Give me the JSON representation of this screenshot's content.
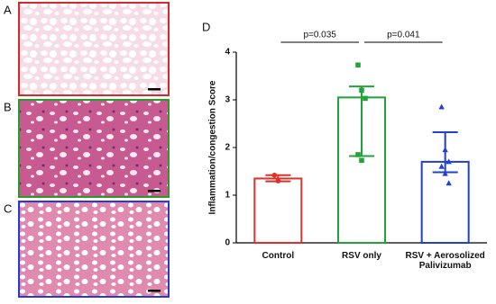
{
  "panels": [
    {
      "label": "A",
      "border": "#d42a2a"
    },
    {
      "label": "B",
      "border": "#2a9a2a"
    },
    {
      "label": "C",
      "border": "#2a3ad0"
    }
  ],
  "chart_data": {
    "type": "bar",
    "panel_label": "D",
    "y_label": "Inflammation/congestion Score",
    "categories": [
      "Control",
      "RSV only",
      "RSV + Aerosolized\nPalivizumab"
    ],
    "values": [
      1.35,
      3.05,
      1.7
    ],
    "err_low": [
      1.29,
      1.82,
      1.48
    ],
    "err_high": [
      1.42,
      3.28,
      2.32
    ],
    "colors": [
      "#e0302a",
      "#22a33a",
      "#2040d0"
    ],
    "markers": [
      "circle",
      "square",
      "triangle"
    ],
    "points": [
      [
        1.42,
        1.3
      ],
      [
        3.73,
        3.2,
        3.03,
        1.85,
        1.73
      ],
      [
        2.85,
        1.95,
        1.7,
        1.6,
        1.45,
        1.25
      ]
    ],
    "comparisons": [
      {
        "from": 0,
        "to": 1,
        "label": "p=0.035"
      },
      {
        "from": 1,
        "to": 2,
        "label": "p=0.041"
      }
    ],
    "ylim": [
      0,
      4
    ],
    "yticks": [
      0,
      1,
      2,
      3,
      4
    ]
  }
}
